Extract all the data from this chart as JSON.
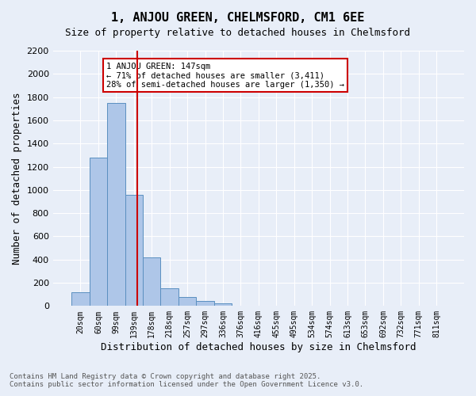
{
  "title": "1, ANJOU GREEN, CHELMSFORD, CM1 6EE",
  "subtitle": "Size of property relative to detached houses in Chelmsford",
  "xlabel": "Distribution of detached houses by size in Chelmsford",
  "ylabel": "Number of detached properties",
  "footer_line1": "Contains HM Land Registry data © Crown copyright and database right 2025.",
  "footer_line2": "Contains public sector information licensed under the Open Government Licence v3.0.",
  "bar_labels": [
    "20sqm",
    "60sqm",
    "99sqm",
    "139sqm",
    "178sqm",
    "218sqm",
    "257sqm",
    "297sqm",
    "336sqm",
    "376sqm",
    "416sqm",
    "455sqm",
    "495sqm",
    "534sqm",
    "574sqm",
    "613sqm",
    "653sqm",
    "692sqm",
    "732sqm",
    "771sqm",
    "811sqm"
  ],
  "bar_values": [
    115,
    1280,
    1750,
    960,
    420,
    150,
    75,
    40,
    20,
    0,
    0,
    0,
    0,
    0,
    0,
    0,
    0,
    0,
    0,
    0,
    0
  ],
  "bar_color": "#aec6e8",
  "bar_edgecolor": "#5a8fc0",
  "background_color": "#e8eef8",
  "plot_bg_color": "#e8eef8",
  "grid_color": "#ffffff",
  "vline_x": 3,
  "vline_color": "#cc0000",
  "annotation_text": "1 ANJOU GREEN: 147sqm\n← 71% of detached houses are smaller (3,411)\n28% of semi-detached houses are larger (1,350) →",
  "annotation_box_color": "#ffffff",
  "annotation_box_edgecolor": "#cc0000",
  "ylim": [
    0,
    2200
  ],
  "yticks": [
    0,
    200,
    400,
    600,
    800,
    1000,
    1200,
    1400,
    1600,
    1800,
    2000,
    2200
  ]
}
